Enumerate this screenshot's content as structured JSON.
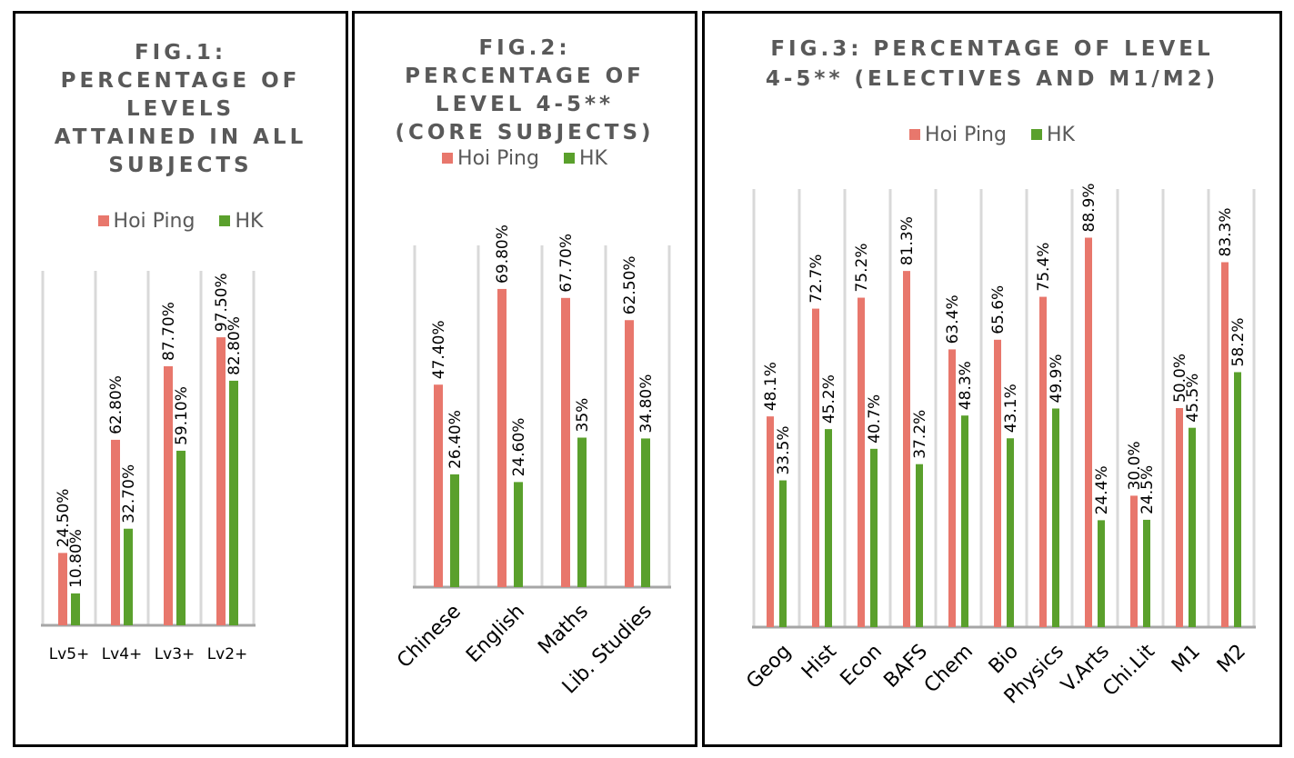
{
  "colors": {
    "hoi_ping": "#E8776C",
    "hk": "#5AA02C",
    "grid": "#d9d9d9",
    "axis": "#a6a6a6"
  },
  "figures": [
    {
      "title_lines": [
        "FIG.1:",
        "PERCENTAGE OF",
        "LEVELS",
        "ATTAINED IN ALL",
        "SUBJECTS"
      ],
      "legend": [
        "Hoi Ping",
        "HK"
      ]
    },
    {
      "title_lines": [
        "FIG.2:",
        "PERCENTAGE OF",
        "LEVEL 4-5**",
        "(CORE SUBJECTS)"
      ],
      "legend": [
        "Hoi Ping",
        "HK"
      ]
    },
    {
      "title_lines": [
        "FIG.3: PERCENTAGE OF LEVEL",
        "4-5** (ELECTIVES AND M1/M2)"
      ],
      "legend": [
        "Hoi Ping",
        "HK"
      ]
    }
  ],
  "chart_data": [
    {
      "type": "bar",
      "title": "FIG.1: PERCENTAGE OF LEVELS ATTAINED IN ALL SUBJECTS",
      "categories": [
        "Lv5+",
        "Lv4+",
        "Lv3+",
        "Lv2+"
      ],
      "series": [
        {
          "name": "Hoi Ping",
          "values": [
            24.5,
            62.8,
            87.7,
            97.5
          ],
          "labels": [
            "24.50%",
            "62.80%",
            "87.70%",
            "97.50%"
          ]
        },
        {
          "name": "HK",
          "values": [
            10.8,
            32.7,
            59.1,
            82.8
          ],
          "labels": [
            "10.80%",
            "32.70%",
            "59.10%",
            "82.80%"
          ]
        }
      ],
      "ylim": [
        0,
        120
      ],
      "grid": true,
      "legend_position": "top",
      "label_orientation": "vertical",
      "tick_rotation": 0
    },
    {
      "type": "bar",
      "title": "FIG.2: PERCENTAGE OF LEVEL 4-5** (CORE SUBJECTS)",
      "categories": [
        "Chinese",
        "English",
        "Maths",
        "Lib. Studies"
      ],
      "series": [
        {
          "name": "Hoi Ping",
          "values": [
            47.4,
            69.8,
            67.7,
            62.5
          ],
          "labels": [
            "47.40%",
            "69.80%",
            "67.70%",
            "62.50%"
          ]
        },
        {
          "name": "HK",
          "values": [
            26.4,
            24.6,
            35,
            34.8
          ],
          "labels": [
            "26.40%",
            "24.60%",
            "35%",
            "34.80%"
          ]
        }
      ],
      "ylim": [
        0,
        80
      ],
      "grid": true,
      "legend_position": "top",
      "label_orientation": "vertical",
      "tick_rotation": -45
    },
    {
      "type": "bar",
      "title": "FIG.3: PERCENTAGE OF LEVEL 4-5** (ELECTIVES AND M1/M2)",
      "categories": [
        "Geog",
        "Hist",
        "Econ",
        "BAFS",
        "Chem",
        "Bio",
        "Physics",
        "V.Arts",
        "Chi.Lit",
        "M1",
        "M2"
      ],
      "series": [
        {
          "name": "Hoi Ping",
          "values": [
            48.1,
            72.7,
            75.2,
            81.3,
            63.4,
            65.6,
            75.4,
            88.9,
            30.0,
            50.0,
            83.3
          ],
          "labels": [
            "48.1%",
            "72.7%",
            "75.2%",
            "81.3%",
            "63.4%",
            "65.6%",
            "75.4%",
            "88.9%",
            "30.0%",
            "50.0%",
            "83.3%"
          ]
        },
        {
          "name": "HK",
          "values": [
            33.5,
            45.2,
            40.7,
            37.2,
            48.3,
            43.1,
            49.9,
            24.4,
            24.5,
            45.5,
            58.2
          ],
          "labels": [
            "33.5%",
            "45.2%",
            "40.7%",
            "37.2%",
            "48.3%",
            "43.1%",
            "49.9%",
            "24.4%",
            "24.5%",
            "45.5%",
            "58.2%"
          ]
        }
      ],
      "ylim": [
        0,
        100
      ],
      "grid": true,
      "legend_position": "top",
      "label_orientation": "vertical",
      "tick_rotation": -45
    }
  ]
}
